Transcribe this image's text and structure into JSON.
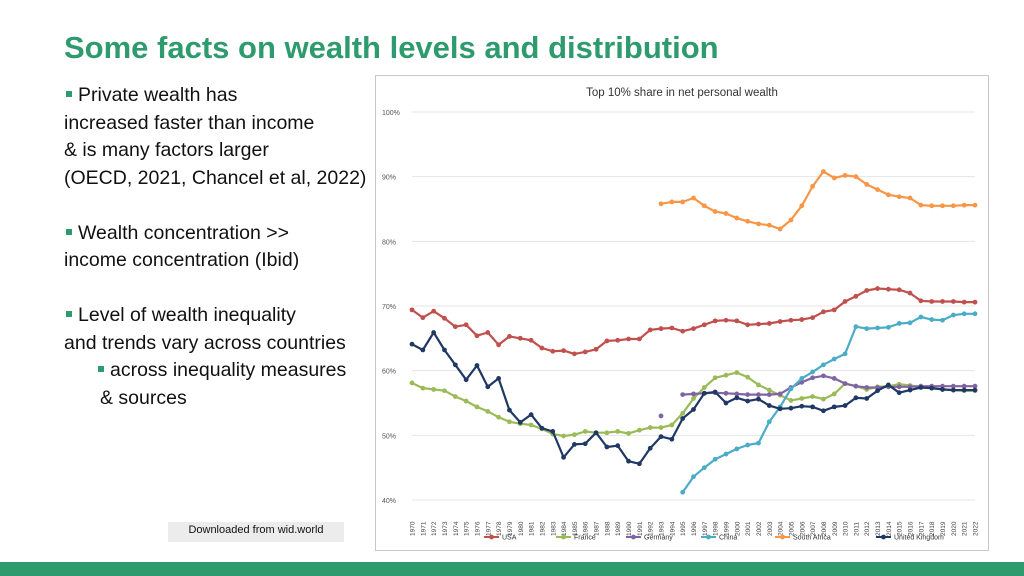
{
  "slide": {
    "title": "Some facts on wealth levels and distribution",
    "bullets": [
      [
        "Private wealth has",
        "increased faster than income",
        "& is many factors larger",
        "(OECD, 2021, Chancel et al, 2022)"
      ],
      [
        "Wealth concentration >>",
        "income concentration (Ibid)"
      ],
      [
        "Level of wealth inequality",
        "and trends vary across countries"
      ]
    ],
    "sub_bullet": [
      "across inequality measures",
      "& sources"
    ],
    "source_note": "Downloaded from wid.world"
  },
  "chart_data": {
    "type": "line",
    "title": "Top 10% share in net personal wealth",
    "ylim": [
      40,
      100
    ],
    "y_ticks": [
      40,
      50,
      60,
      70,
      80,
      90,
      100
    ],
    "y_tick_labels": [
      "40%",
      "50%",
      "60%",
      "70%",
      "80%",
      "90%",
      "100%"
    ],
    "x": [
      "1970",
      "1971",
      "1972",
      "1973",
      "1974",
      "1975",
      "1976",
      "1977",
      "1978",
      "1979",
      "1980",
      "1981",
      "1982",
      "1983",
      "1984",
      "1985",
      "1986",
      "1987",
      "1988",
      "1989",
      "1990",
      "1991",
      "1992",
      "1993",
      "1994",
      "1995",
      "1996",
      "1997",
      "1998",
      "1999",
      "2000",
      "2001",
      "2002",
      "2003",
      "2004",
      "2005",
      "2006",
      "2007",
      "2008",
      "2009",
      "2010",
      "2011",
      "2012",
      "2013",
      "2014",
      "2015",
      "2016",
      "2017",
      "2018",
      "2019",
      "2020",
      "2021",
      "2022"
    ],
    "grid": "horizontal",
    "legend_position": "bottom",
    "series": [
      {
        "name": "USA",
        "color": "#c0504d",
        "values": [
          69.4,
          68.2,
          69.2,
          68.1,
          66.8,
          67.1,
          65.4,
          65.9,
          64.0,
          65.3,
          65.0,
          64.7,
          63.5,
          63.0,
          63.1,
          62.6,
          62.9,
          63.3,
          64.6,
          64.7,
          64.9,
          64.9,
          66.3,
          66.5,
          66.6,
          66.1,
          66.5,
          67.1,
          67.7,
          67.8,
          67.7,
          67.1,
          67.2,
          67.3,
          67.6,
          67.8,
          67.9,
          68.2,
          69.1,
          69.4,
          70.7,
          71.5,
          72.4,
          72.7,
          72.6,
          72.5,
          72.0,
          70.8,
          70.7,
          70.7,
          70.7,
          70.6,
          70.6
        ]
      },
      {
        "name": "France",
        "color": "#9bbb59",
        "values": [
          58.1,
          57.3,
          57.1,
          56.9,
          56.0,
          55.3,
          54.4,
          53.7,
          52.8,
          52.1,
          51.8,
          51.6,
          51.0,
          50.2,
          49.9,
          50.1,
          50.6,
          50.4,
          50.4,
          50.6,
          50.3,
          50.8,
          51.2,
          51.2,
          51.6,
          53.4,
          55.7,
          57.4,
          58.9,
          59.3,
          59.7,
          59.0,
          57.8,
          57.0,
          56.2,
          55.4,
          55.7,
          56.0,
          55.6,
          56.4,
          58.0,
          57.6,
          57.1,
          57.5,
          57.6,
          57.9,
          57.7,
          57.5,
          57.3,
          57.1,
          57.0,
          56.9,
          56.9
        ]
      },
      {
        "name": "Germany",
        "color": "#8064a2",
        "values": [
          null,
          null,
          null,
          null,
          null,
          null,
          null,
          null,
          null,
          null,
          null,
          null,
          null,
          null,
          null,
          null,
          null,
          null,
          null,
          null,
          null,
          null,
          null,
          53.0,
          null,
          56.3,
          56.4,
          56.5,
          56.6,
          56.5,
          56.4,
          56.3,
          56.3,
          56.3,
          56.4,
          57.4,
          58.2,
          58.9,
          59.2,
          58.8,
          58.0,
          57.6,
          57.4,
          57.4,
          57.5,
          57.5,
          57.5,
          57.6,
          57.6,
          57.6,
          57.6,
          57.6,
          57.6
        ]
      },
      {
        "name": "China",
        "color": "#4bacc6",
        "values": [
          null,
          null,
          null,
          null,
          null,
          null,
          null,
          null,
          null,
          null,
          null,
          null,
          null,
          null,
          null,
          null,
          null,
          null,
          null,
          null,
          null,
          null,
          null,
          null,
          null,
          41.2,
          43.6,
          45.0,
          46.3,
          47.1,
          47.9,
          48.5,
          48.8,
          52.1,
          54.4,
          57.2,
          58.8,
          59.8,
          60.9,
          61.8,
          62.6,
          66.8,
          66.5,
          66.6,
          66.7,
          67.3,
          67.4,
          68.3,
          67.9,
          67.8,
          68.6,
          68.8,
          68.8
        ]
      },
      {
        "name": "South Africa",
        "color": "#f79646",
        "values": [
          null,
          null,
          null,
          null,
          null,
          null,
          null,
          null,
          null,
          null,
          null,
          null,
          null,
          null,
          null,
          null,
          null,
          null,
          null,
          null,
          null,
          null,
          null,
          85.8,
          86.1,
          86.1,
          86.7,
          85.5,
          84.6,
          84.3,
          83.6,
          83.1,
          82.7,
          82.5,
          81.9,
          83.3,
          85.5,
          88.5,
          90.8,
          89.8,
          90.2,
          90.0,
          88.8,
          88.0,
          87.2,
          86.9,
          86.7,
          85.6,
          85.5,
          85.5,
          85.5,
          85.6,
          85.6
        ]
      },
      {
        "name": "United Kingdom",
        "color": "#1f3864",
        "values": [
          64.1,
          63.2,
          65.9,
          63.2,
          60.9,
          58.6,
          60.8,
          57.5,
          58.8,
          53.9,
          52.0,
          53.2,
          51.1,
          50.6,
          46.6,
          48.6,
          48.7,
          50.4,
          48.2,
          48.4,
          46.0,
          45.6,
          48.0,
          49.8,
          49.4,
          52.6,
          54.0,
          56.5,
          56.7,
          55.0,
          55.8,
          55.3,
          55.6,
          54.6,
          54.1,
          54.2,
          54.5,
          54.4,
          53.8,
          54.4,
          54.6,
          55.8,
          55.7,
          56.9,
          57.8,
          56.6,
          57.0,
          57.4,
          57.3,
          57.1,
          57.0,
          57.0,
          57.0
        ]
      }
    ]
  }
}
